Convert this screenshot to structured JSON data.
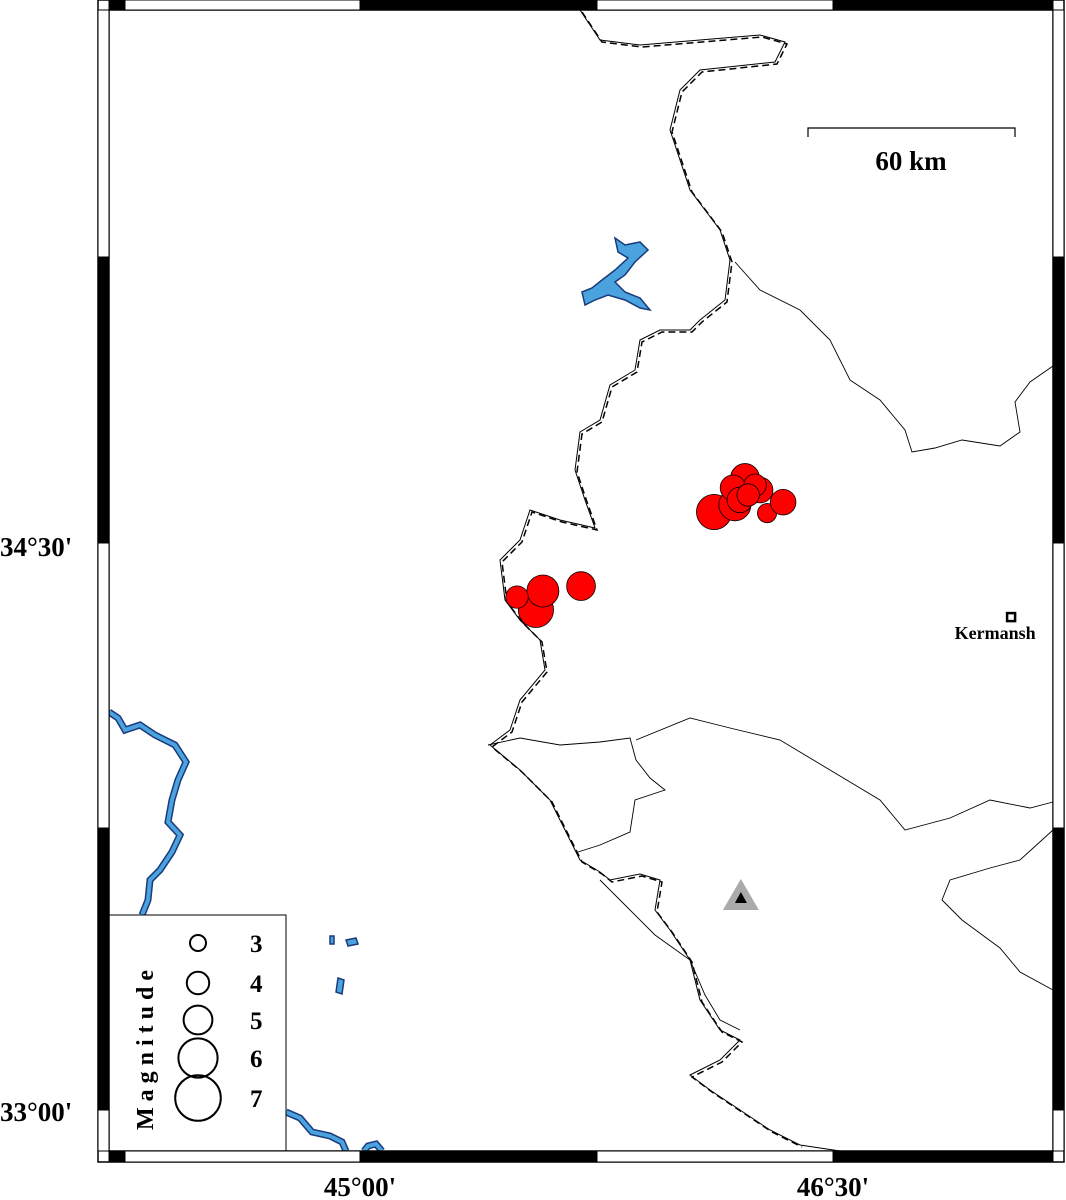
{
  "map": {
    "projection": {
      "lon_ticks": [
        "45°00'",
        "46°30'"
      ],
      "lat_ticks": [
        "34°30'",
        "33°00'"
      ]
    },
    "scale_bar": {
      "label": "60 km"
    },
    "city": {
      "name": "Kermansh",
      "lon": 47.065,
      "lat": 34.304
    },
    "station": {
      "symbol": "triangle",
      "lon": 46.208,
      "lat": 33.561
    },
    "colors": {
      "event": "#ff0000",
      "water": "#4aa3df",
      "station": "#aaaaaa"
    },
    "events": [
      {
        "lon": 46.123,
        "lat": 34.582,
        "mag": 6.0
      },
      {
        "lon": 46.189,
        "lat": 34.601,
        "mag": 5.5
      },
      {
        "lon": 46.221,
        "lat": 34.672,
        "mag": 5.0
      },
      {
        "lon": 46.183,
        "lat": 34.646,
        "mag": 4.5
      },
      {
        "lon": 46.269,
        "lat": 34.64,
        "mag": 4.5
      },
      {
        "lon": 46.253,
        "lat": 34.653,
        "mag": 4.0
      },
      {
        "lon": 46.205,
        "lat": 34.614,
        "mag": 4.5
      },
      {
        "lon": 46.231,
        "lat": 34.627,
        "mag": 4.0
      },
      {
        "lon": 46.291,
        "lat": 34.579,
        "mag": 3.5
      },
      {
        "lon": 46.342,
        "lat": 34.608,
        "mag": 4.5
      },
      {
        "lon": 45.558,
        "lat": 34.323,
        "mag": 6.0
      },
      {
        "lon": 45.58,
        "lat": 34.373,
        "mag": 5.5
      },
      {
        "lon": 45.498,
        "lat": 34.357,
        "mag": 4.0
      },
      {
        "lon": 45.701,
        "lat": 34.386,
        "mag": 5.0
      }
    ],
    "legend": {
      "title": "Magnitude",
      "magnitudes": [
        "3",
        "4",
        "5",
        "6",
        "7"
      ]
    }
  }
}
